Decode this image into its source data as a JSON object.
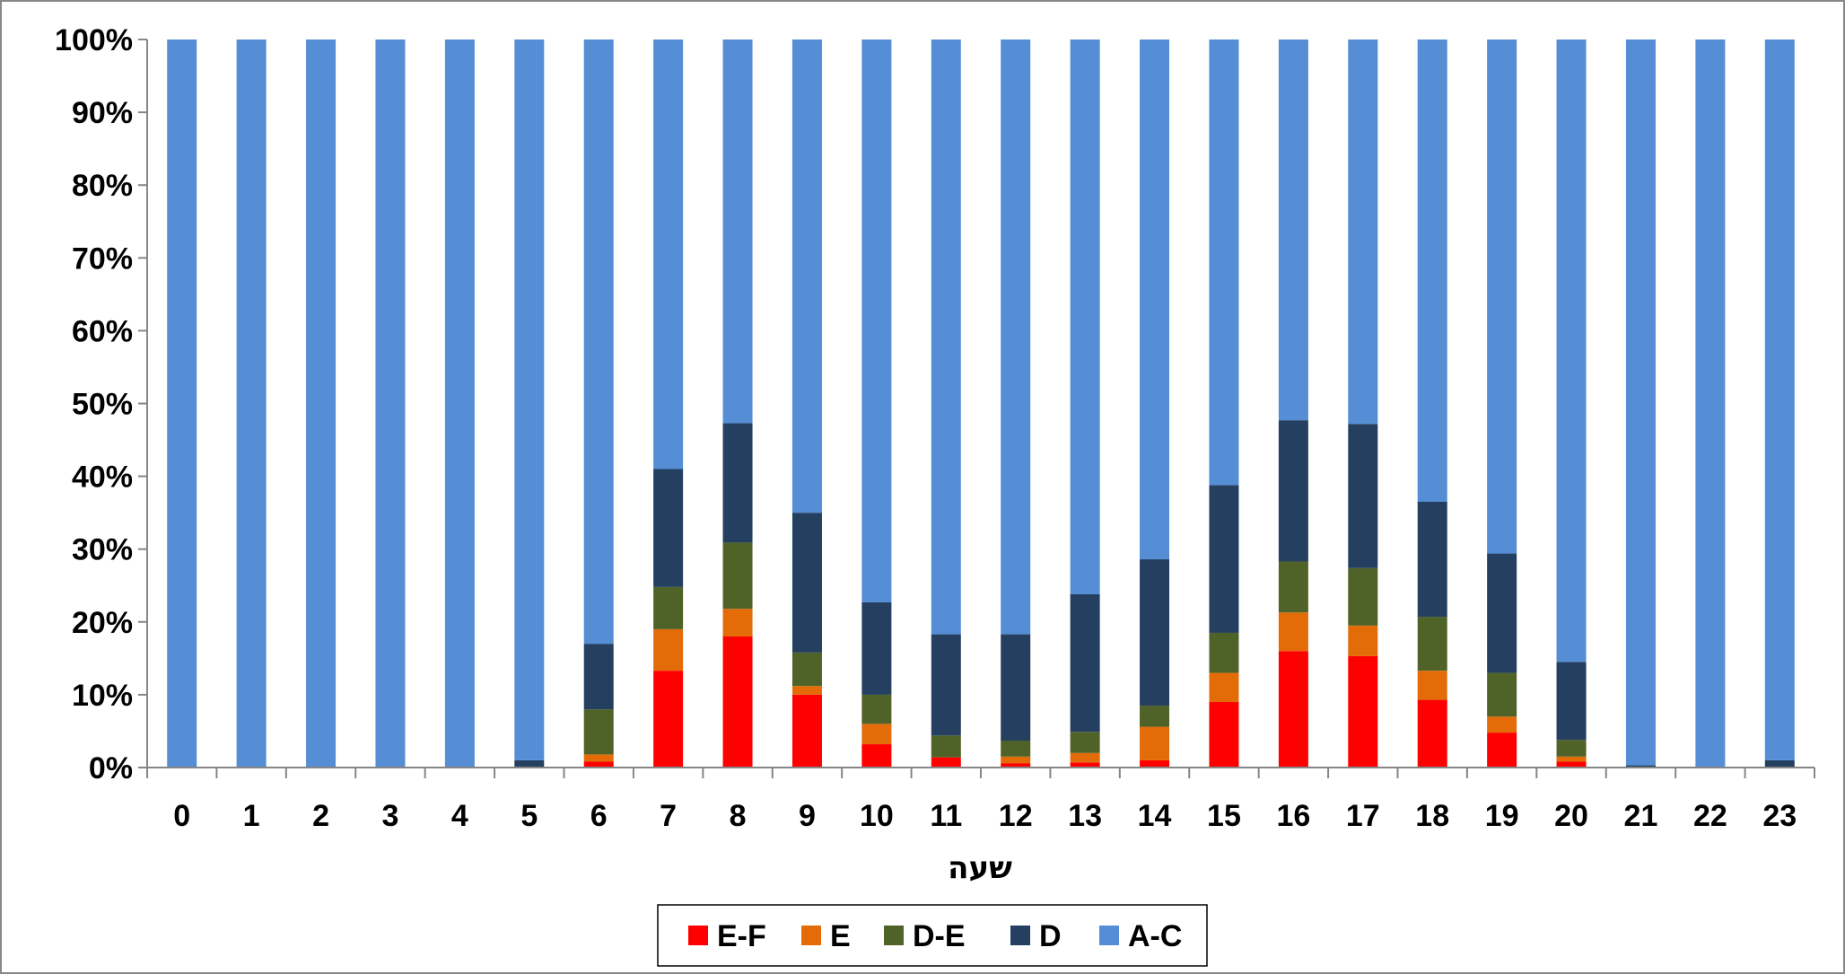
{
  "chart_data": {
    "type": "bar",
    "stacked": true,
    "percent": true,
    "title": "",
    "xlabel": "שעה",
    "ylabel": "",
    "ylim": [
      0,
      100
    ],
    "y_ticks": [
      "0%",
      "10%",
      "20%",
      "30%",
      "40%",
      "50%",
      "60%",
      "70%",
      "80%",
      "90%",
      "100%"
    ],
    "categories": [
      "0",
      "1",
      "2",
      "3",
      "4",
      "5",
      "6",
      "7",
      "8",
      "9",
      "10",
      "11",
      "12",
      "13",
      "14",
      "15",
      "16",
      "17",
      "18",
      "19",
      "20",
      "21",
      "22",
      "23"
    ],
    "legend_position": "bottom",
    "grid": false,
    "series": [
      {
        "name": "E-F",
        "color": "#ff0000",
        "values": [
          0,
          0,
          0,
          0,
          0,
          0,
          0.8,
          13.3,
          18,
          10,
          3.2,
          1.4,
          0.6,
          0.7,
          1,
          9,
          16,
          15.3,
          9.3,
          4.8,
          0.8,
          0,
          0,
          0
        ]
      },
      {
        "name": "E",
        "color": "#e36c09",
        "values": [
          0,
          0,
          0,
          0,
          0,
          0,
          1,
          5.7,
          3.8,
          1.2,
          2.8,
          0,
          0.9,
          1.3,
          4.6,
          4,
          5.3,
          4.2,
          4,
          2.2,
          0.7,
          0,
          0,
          0
        ]
      },
      {
        "name": "D-E",
        "color": "#4f6228",
        "values": [
          0,
          0,
          0,
          0,
          0,
          0,
          6.2,
          5.8,
          9.1,
          4.6,
          4,
          3,
          2.2,
          2.9,
          2.9,
          5.5,
          7,
          7.9,
          7.4,
          6,
          2.3,
          0,
          0,
          0
        ]
      },
      {
        "name": "D",
        "color": "#243f60",
        "values": [
          0,
          0,
          0,
          0,
          0,
          1,
          9,
          16.2,
          16.4,
          19.2,
          12.7,
          13.9,
          14.6,
          18.9,
          20.1,
          20.3,
          19.4,
          19.8,
          15.8,
          16.4,
          10.7,
          0.3,
          0,
          1
        ]
      },
      {
        "name": "A-C",
        "color": "#558ed5",
        "values": [
          100,
          100,
          100,
          100,
          100,
          99,
          83,
          59,
          52.7,
          65,
          77.3,
          81.7,
          81.7,
          76.2,
          71.4,
          61.2,
          52.3,
          52.8,
          63.5,
          70.6,
          85.5,
          99.7,
          100,
          99
        ]
      }
    ]
  }
}
